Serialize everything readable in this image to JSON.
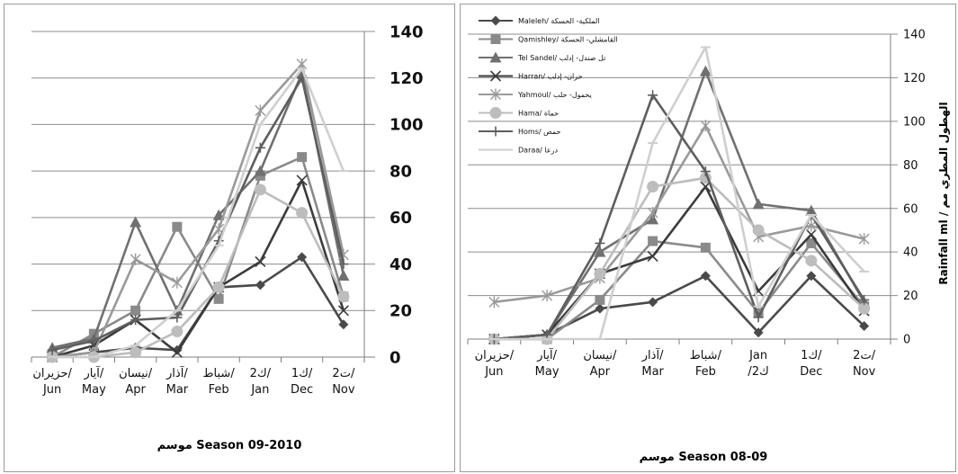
{
  "chart_data": [
    {
      "type": "line",
      "title": "موسم Season 09-2010",
      "categories": [
        "حزيران/ Jun",
        "آيار/ May",
        "نيسان/ Apr",
        "آذار/ Mar",
        "شباط/ Feb",
        "ك2/ Jan",
        "ك1/ Dec",
        "ت2/ Nov"
      ],
      "ylim": [
        0,
        140
      ],
      "yticks": [
        "0",
        "20",
        "40",
        "60",
        "80",
        "100",
        "120",
        "140"
      ],
      "grid": true,
      "legend": "none",
      "series": [
        {
          "color": "#4a4a4a",
          "marker": "diamond",
          "values": [
            0,
            2,
            4,
            3,
            30,
            31,
            43,
            14
          ]
        },
        {
          "color": "#8a8a8a",
          "marker": "square",
          "values": [
            0,
            10,
            20,
            56,
            25,
            78,
            86,
            26
          ]
        },
        {
          "color": "#707070",
          "marker": "triangle",
          "values": [
            4,
            8,
            58,
            20,
            61,
            80,
            122,
            35
          ]
        },
        {
          "color": "#3c3c3c",
          "marker": "x",
          "values": [
            0,
            5,
            16,
            2,
            30,
            41,
            76,
            20
          ]
        },
        {
          "color": "#9a9a9a",
          "marker": "star",
          "values": [
            0,
            2,
            42,
            32,
            55,
            106,
            126,
            44
          ]
        },
        {
          "color": "#bdbdbd",
          "marker": "circle",
          "values": [
            0,
            0,
            2,
            11,
            30,
            72,
            62,
            26
          ]
        },
        {
          "color": "#5e5e5e",
          "marker": "plus",
          "values": [
            3,
            7,
            16,
            17,
            50,
            90,
            120,
            40
          ]
        },
        {
          "color": "#cfcfcf",
          "marker": "dash",
          "values": [
            0,
            0,
            5,
            20,
            48,
            100,
            124,
            80
          ]
        }
      ]
    },
    {
      "type": "line",
      "title": "موسم Season 08-09",
      "ylabel": "Rainfall ml / الهطول المطري مم",
      "categories": [
        "حزيران/ Jun",
        "آيار/ May",
        "نيسان/ Apr",
        "آذار/ Mar",
        "شباط/ Feb",
        "Jan /ك2",
        "ك1/ Dec",
        "ت2/ Nov"
      ],
      "ylim": [
        0,
        140
      ],
      "yticks": [
        "0",
        "20",
        "40",
        "60",
        "80",
        "100",
        "120",
        "140"
      ],
      "grid": true,
      "legend": "top-left",
      "series": [
        {
          "name": "Maleleh/ الملكية- الحسكة",
          "color": "#4a4a4a",
          "marker": "diamond",
          "values": [
            0,
            2,
            14,
            17,
            29,
            3,
            29,
            6
          ]
        },
        {
          "name": "Qamishley/ القامشلي- الحسكة",
          "color": "#8a8a8a",
          "marker": "square",
          "values": [
            0,
            0,
            18,
            45,
            42,
            12,
            44,
            15
          ]
        },
        {
          "name": "Tel Sandel/ تل صندل- إدلب",
          "color": "#707070",
          "marker": "triangle",
          "values": [
            0,
            2,
            40,
            55,
            123,
            62,
            59,
            17
          ]
        },
        {
          "name": "Harran/ حران- إدلب",
          "color": "#3c3c3c",
          "marker": "x",
          "values": [
            0,
            2,
            30,
            38,
            70,
            22,
            48,
            13
          ]
        },
        {
          "name": "Yahmoul/ يحمول- حلب",
          "color": "#9a9a9a",
          "marker": "star",
          "values": [
            17,
            20,
            28,
            58,
            98,
            47,
            52,
            46
          ]
        },
        {
          "name": "Hama/ حماة",
          "color": "#bdbdbd",
          "marker": "circle",
          "values": [
            0,
            0,
            30,
            70,
            74,
            50,
            36,
            14
          ]
        },
        {
          "name": "Homs/ حمص",
          "color": "#5e5e5e",
          "marker": "plus",
          "values": [
            0,
            2,
            44,
            112,
            77,
            10,
            57,
            18
          ]
        },
        {
          "name": "Daraa/ درعا",
          "color": "#cfcfcf",
          "marker": "dash",
          "values": [
            0,
            0,
            0,
            90,
            134,
            15,
            57,
            31
          ]
        }
      ]
    }
  ]
}
